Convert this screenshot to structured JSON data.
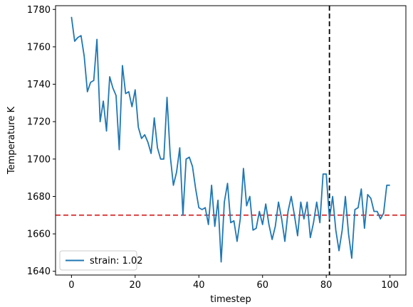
{
  "chart_data": {
    "type": "line",
    "xlabel": "timestep",
    "ylabel": "Temperature K",
    "xlim": [
      -5,
      105
    ],
    "ylim": [
      1638,
      1782
    ],
    "x_ticks": [
      0,
      20,
      40,
      60,
      80,
      100
    ],
    "y_ticks": [
      1640,
      1660,
      1680,
      1700,
      1720,
      1740,
      1760,
      1780
    ],
    "grid": false,
    "legend_position": "lower-left",
    "series": [
      {
        "name": "strain: 1.02",
        "color": "#1f77b4",
        "x": [
          0,
          1,
          2,
          3,
          4,
          5,
          6,
          7,
          8,
          9,
          10,
          11,
          12,
          13,
          14,
          15,
          16,
          17,
          18,
          19,
          20,
          21,
          22,
          23,
          24,
          25,
          26,
          27,
          28,
          29,
          30,
          31,
          32,
          33,
          34,
          35,
          36,
          37,
          38,
          39,
          40,
          41,
          42,
          43,
          44,
          45,
          46,
          47,
          48,
          49,
          50,
          51,
          52,
          53,
          54,
          55,
          56,
          57,
          58,
          59,
          60,
          61,
          62,
          63,
          64,
          65,
          66,
          67,
          68,
          69,
          70,
          71,
          72,
          73,
          74,
          75,
          76,
          77,
          78,
          79,
          80,
          81,
          82,
          83,
          84,
          85,
          86,
          87,
          88,
          89,
          90,
          91,
          92,
          93,
          94,
          95,
          96,
          97,
          98,
          99,
          100
        ],
        "y": [
          1776,
          1763,
          1765,
          1766,
          1755,
          1736,
          1741,
          1742,
          1764,
          1720,
          1731,
          1715,
          1744,
          1738,
          1734,
          1705,
          1750,
          1735,
          1736,
          1728,
          1737,
          1717,
          1711,
          1713,
          1709,
          1703,
          1722,
          1706,
          1700,
          1700,
          1733,
          1702,
          1686,
          1693,
          1706,
          1670,
          1700,
          1701,
          1696,
          1684,
          1674,
          1673,
          1674,
          1665,
          1686,
          1664,
          1678,
          1645,
          1677,
          1687,
          1666,
          1667,
          1656,
          1668,
          1695,
          1675,
          1680,
          1662,
          1663,
          1672,
          1665,
          1676,
          1665,
          1657,
          1664,
          1677,
          1668,
          1656,
          1672,
          1680,
          1670,
          1659,
          1677,
          1668,
          1677,
          1658,
          1666,
          1677,
          1666,
          1692,
          1692,
          1668,
          1680,
          1662,
          1651,
          1662,
          1680,
          1660,
          1647,
          1673,
          1674,
          1684,
          1663,
          1681,
          1679,
          1672,
          1672,
          1668,
          1671,
          1686,
          1686
        ]
      }
    ],
    "reference_lines": [
      {
        "orientation": "horizontal",
        "value": 1670,
        "color": "#d62728",
        "style": "dashed"
      },
      {
        "orientation": "vertical",
        "value": 81,
        "color": "#000000",
        "style": "dashed"
      }
    ]
  }
}
